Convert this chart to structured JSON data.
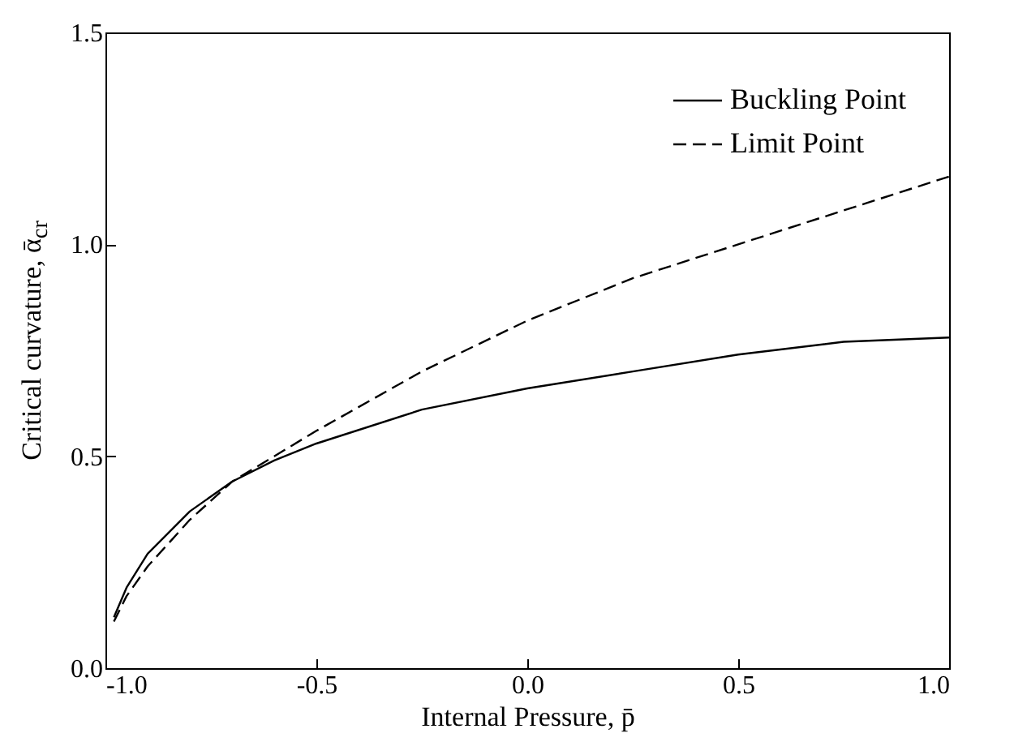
{
  "chart_data": {
    "type": "line",
    "xlabel": "Internal Pressure,  p̄",
    "ylabel": "Critical curvature,  ᾱ$_{cr}$",
    "x": [
      -0.98,
      -0.95,
      -0.9,
      -0.8,
      -0.7,
      -0.6,
      -0.5,
      -0.25,
      0,
      0.25,
      0.5,
      0.75,
      1.0
    ],
    "series": [
      {
        "name": "Buckling Point",
        "color": "#000000",
        "line_style": "solid",
        "values": [
          0.12,
          0.19,
          0.27,
          0.37,
          0.44,
          0.49,
          0.53,
          0.61,
          0.66,
          0.7,
          0.74,
          0.77,
          0.78
        ]
      },
      {
        "name": "Limit Point",
        "color": "#000000",
        "line_style": "dashed",
        "values": [
          0.11,
          0.17,
          0.24,
          0.35,
          0.44,
          0.5,
          0.56,
          0.7,
          0.82,
          0.92,
          1.0,
          1.08,
          1.16
        ]
      }
    ],
    "xlim": [
      -1.0,
      1.0
    ],
    "xticks": [
      {
        "value": -1,
        "label": "-1.0"
      },
      -0.5,
      {
        "value": 0,
        "label": "0.0"
      },
      0.5,
      {
        "value": 1,
        "label": "1.0"
      }
    ],
    "ylim": [
      0,
      1.5
    ],
    "yticks": [
      {
        "value": 0,
        "label": "0.0"
      },
      0.5,
      {
        "value": 1,
        "label": "1.0"
      },
      1.5
    ],
    "grid": false,
    "legend": "top right"
  }
}
